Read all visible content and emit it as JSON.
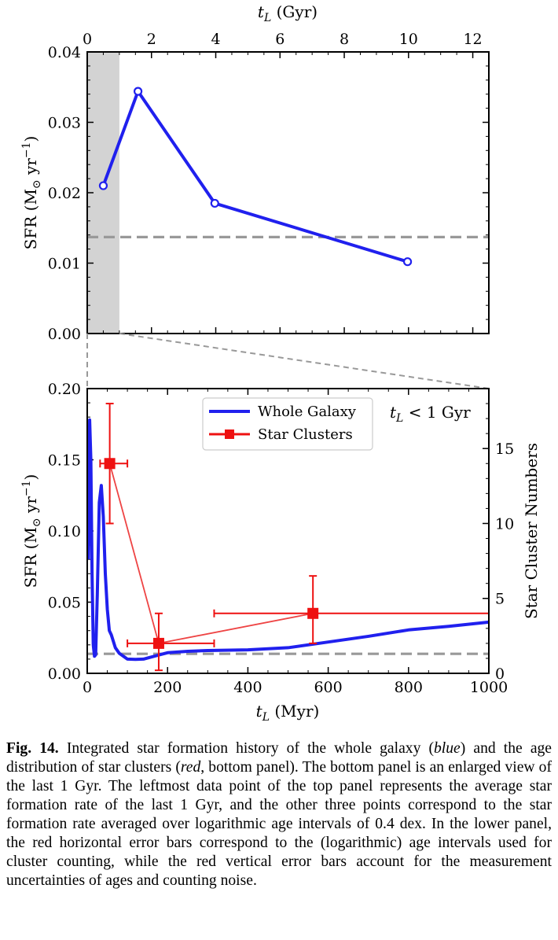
{
  "chart_data": [
    {
      "type": "line",
      "panel": "top",
      "xlabel_top": {
        "main": "t",
        "sub": "L",
        "unit": " (Gyr)"
      },
      "ylabel": {
        "text": "SFR (M",
        "sun": "⊙",
        "unit": " yr",
        "exp": "−1",
        "close": ")"
      },
      "xlim": [
        0,
        12.5
      ],
      "ylim": [
        0,
        0.04
      ],
      "x_ticks": [
        "0",
        "2",
        "4",
        "6",
        "8",
        "10",
        "12"
      ],
      "y_ticks": [
        "0.00",
        "0.01",
        "0.02",
        "0.03",
        "0.04"
      ],
      "shaded_region_x": [
        0,
        1
      ],
      "dashed_hline_y": 0.0137,
      "series": [
        {
          "color": "#2020ee",
          "x": [
            0.5,
            1.58,
            3.97,
            9.97
          ],
          "y": [
            0.021,
            0.0344,
            0.0185,
            0.0102
          ]
        }
      ]
    },
    {
      "type": "line",
      "panel": "bottom",
      "xlabel": {
        "main": "t",
        "sub": "L",
        "unit": " (Myr)"
      },
      "ylabel": {
        "text": "SFR (M",
        "sun": "⊙",
        "unit": " yr",
        "exp": "−1",
        "close": ")"
      },
      "ylabel_right": "Star Cluster Numbers",
      "xlim": [
        0,
        1000
      ],
      "ylim": [
        0,
        0.2
      ],
      "y2lim": [
        0,
        19
      ],
      "x_ticks": [
        "0",
        "200",
        "400",
        "600",
        "800",
        "1000"
      ],
      "y_ticks": [
        "0.00",
        "0.05",
        "0.10",
        "0.15",
        "0.20"
      ],
      "y2_ticks": [
        "0",
        "5",
        "10",
        "15"
      ],
      "annotation": {
        "main": "t",
        "sub": "L",
        "rest": " < 1 Gyr"
      },
      "dashed_hline_y": 0.0137,
      "legend_position": "upper-center",
      "series": [
        {
          "name": "Whole Galaxy",
          "color": "#2020ee",
          "x": [
            3,
            6,
            9,
            12,
            15,
            18,
            21,
            25,
            30,
            35,
            40,
            45,
            50,
            55,
            60,
            70,
            80,
            100,
            120,
            140,
            160,
            180,
            200,
            250,
            300,
            400,
            500,
            600,
            700,
            800,
            900,
            1000
          ],
          "y": [
            0.08,
            0.178,
            0.15,
            0.07,
            0.02,
            0.012,
            0.013,
            0.055,
            0.12,
            0.132,
            0.11,
            0.07,
            0.045,
            0.03,
            0.027,
            0.018,
            0.014,
            0.01,
            0.0098,
            0.01,
            0.0115,
            0.013,
            0.0145,
            0.0155,
            0.016,
            0.0165,
            0.018,
            0.022,
            0.026,
            0.0305,
            0.033,
            0.036
          ]
        },
        {
          "name": "Star Clusters",
          "color": "#ee1111",
          "axis": "right",
          "x": [
            56,
            178,
            562
          ],
          "y": [
            14,
            2,
            4
          ],
          "x_err_low": [
            24,
            78,
            246
          ],
          "x_err_high": [
            44,
            138,
            438
          ],
          "y_err_low": [
            4,
            1.8,
            2
          ],
          "y_err_high": [
            4,
            2,
            2.5
          ]
        }
      ]
    }
  ],
  "caption": {
    "label": "Fig. 14.",
    "p1": " Integrated star formation history of the whole galaxy (",
    "blue": "blue",
    "p2": ") and the age distribution of star clusters (",
    "red": "red",
    "p3": ", bottom panel). The bottom panel is an enlarged view of the last 1 Gyr. The leftmost data point of the top panel represents the average star formation rate of the last 1 Gyr, and the other three points correspond to the star formation rate averaged over logarithmic age intervals of 0.4 dex. In the lower panel, the red horizontal error bars correspond to the (logarithmic) age intervals used for cluster counting, while the red vertical error bars account for the measurement uncertainties of ages and counting noise."
  }
}
